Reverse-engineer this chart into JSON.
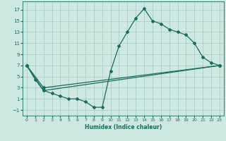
{
  "xlabel": "Humidex (Indice chaleur)",
  "background_color": "#cce8e0",
  "grid_color": "#aacccc",
  "line_color": "#1a6b60",
  "xlim": [
    -0.5,
    23.5
  ],
  "ylim": [
    -2,
    18.5
  ],
  "xticks": [
    0,
    1,
    2,
    3,
    4,
    5,
    6,
    7,
    8,
    9,
    10,
    11,
    12,
    13,
    14,
    15,
    16,
    17,
    18,
    19,
    20,
    21,
    22,
    23
  ],
  "yticks": [
    -1,
    1,
    3,
    5,
    7,
    9,
    11,
    13,
    15,
    17
  ],
  "line1_x": [
    0,
    1,
    2,
    3,
    4,
    5,
    6,
    7,
    8,
    9,
    10,
    11,
    12,
    13,
    14,
    15,
    16,
    17,
    18,
    19,
    20,
    21,
    22,
    23
  ],
  "line1_y": [
    7,
    4.5,
    2.5,
    2,
    1.5,
    1,
    1,
    0.5,
    -0.5,
    -0.5,
    6,
    10.5,
    13,
    15.5,
    17.2,
    15,
    14.5,
    13.5,
    13,
    12.5,
    11,
    8.5,
    7.5,
    7
  ],
  "line2_x": [
    0,
    2,
    23
  ],
  "line2_y": [
    7,
    3,
    7
  ],
  "line3_x": [
    0,
    2,
    23
  ],
  "line3_y": [
    7,
    2.5,
    7
  ]
}
